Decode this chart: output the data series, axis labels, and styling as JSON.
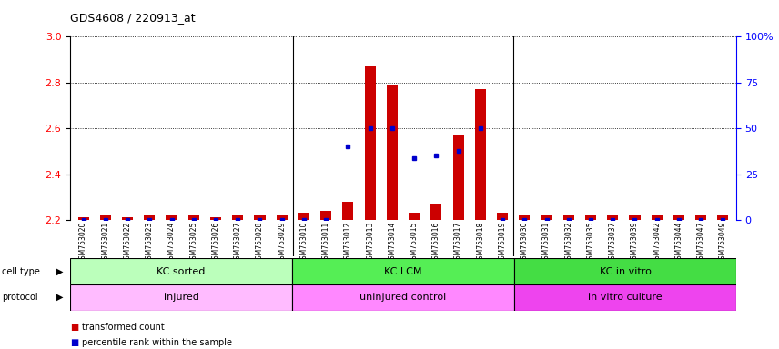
{
  "title": "GDS4608 / 220913_at",
  "samples": [
    "GSM753020",
    "GSM753021",
    "GSM753022",
    "GSM753023",
    "GSM753024",
    "GSM753025",
    "GSM753026",
    "GSM753027",
    "GSM753028",
    "GSM753029",
    "GSM753010",
    "GSM753011",
    "GSM753012",
    "GSM753013",
    "GSM753014",
    "GSM753015",
    "GSM753016",
    "GSM753017",
    "GSM753018",
    "GSM753019",
    "GSM753030",
    "GSM753031",
    "GSM753032",
    "GSM753035",
    "GSM753037",
    "GSM753039",
    "GSM753042",
    "GSM753044",
    "GSM753047",
    "GSM753049"
  ],
  "red_values": [
    2.21,
    2.22,
    2.21,
    2.22,
    2.22,
    2.22,
    2.21,
    2.22,
    2.22,
    2.22,
    2.23,
    2.24,
    2.28,
    2.87,
    2.79,
    2.23,
    2.27,
    2.57,
    2.77,
    2.23,
    2.22,
    2.22,
    2.22,
    2.22,
    2.22,
    2.22,
    2.22,
    2.22,
    2.22,
    2.22
  ],
  "blue_values": [
    2.2,
    2.2,
    2.2,
    2.2,
    2.2,
    2.2,
    2.2,
    2.2,
    2.2,
    2.2,
    2.2,
    2.2,
    2.52,
    2.6,
    2.6,
    2.47,
    2.48,
    2.5,
    2.6,
    2.2,
    2.2,
    2.2,
    2.2,
    2.2,
    2.2,
    2.2,
    2.2,
    2.2,
    2.2,
    2.2
  ],
  "ylim": [
    2.2,
    3.0
  ],
  "yticks_left": [
    2.2,
    2.4,
    2.6,
    2.8,
    3.0
  ],
  "right_tick_positions": [
    2.2,
    2.4,
    2.6,
    2.8,
    3.0
  ],
  "right_tick_labels": [
    "0",
    "25",
    "50",
    "75",
    "100%"
  ],
  "red_color": "#CC0000",
  "blue_color": "#0000CC",
  "plot_bg": "#ffffff",
  "xtick_bg": "#D0D0D0",
  "bar_width": 0.5,
  "baseline": 2.2,
  "cell_groups": [
    {
      "label": "KC sorted",
      "start": 0,
      "end": 10,
      "color": "#BBFFBB"
    },
    {
      "label": "KC LCM",
      "start": 10,
      "end": 20,
      "color": "#55EE55"
    },
    {
      "label": "KC in vitro",
      "start": 20,
      "end": 30,
      "color": "#44DD44"
    }
  ],
  "proto_groups": [
    {
      "label": "injured",
      "start": 0,
      "end": 10,
      "color": "#FFBBFF"
    },
    {
      "label": "uninjured control",
      "start": 10,
      "end": 20,
      "color": "#FF88FF"
    },
    {
      "label": "in vitro culture",
      "start": 20,
      "end": 30,
      "color": "#EE44EE"
    }
  ],
  "n_samples": 30,
  "group_boundaries": [
    10,
    20
  ]
}
